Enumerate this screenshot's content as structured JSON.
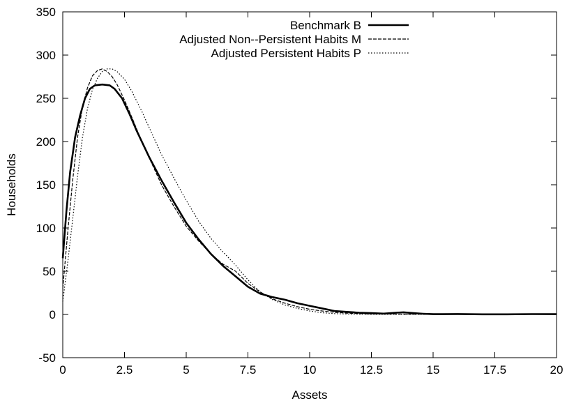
{
  "chart_data": {
    "type": "line",
    "title": "",
    "xlabel": "Assets",
    "ylabel": "Households",
    "xlim": [
      0,
      20
    ],
    "ylim": [
      -50,
      350
    ],
    "xticks": [
      0,
      2.5,
      5,
      7.5,
      10,
      12.5,
      15,
      17.5,
      20
    ],
    "yticks": [
      -50,
      0,
      50,
      100,
      150,
      200,
      250,
      300,
      350
    ],
    "xtick_labels": [
      "0",
      "2.5",
      "5",
      "7.5",
      "10",
      "12.5",
      "15",
      "17.5",
      "20"
    ],
    "ytick_labels": [
      "-50",
      "0",
      "50",
      "100",
      "150",
      "200",
      "250",
      "300",
      "350"
    ],
    "grid": false,
    "legend_position": "top-right",
    "series": [
      {
        "name": "Benchmark  B",
        "style": "solid",
        "color": "#000000",
        "x": [
          0,
          0.15,
          0.3,
          0.5,
          0.7,
          0.9,
          1.1,
          1.3,
          1.6,
          1.9,
          2.1,
          2.4,
          2.7,
          3.0,
          3.5,
          4.0,
          4.5,
          5.0,
          5.5,
          6.0,
          6.5,
          7.0,
          7.5,
          8.0,
          8.5,
          9.0,
          9.5,
          10.0,
          10.5,
          11.0,
          11.5,
          12.0,
          12.5,
          13.0,
          13.5,
          13.8,
          14.2,
          14.6,
          15.0,
          16.0,
          17.0,
          18.0,
          19.0,
          20.0
        ],
        "values": [
          65,
          120,
          165,
          205,
          230,
          250,
          261,
          265,
          266,
          265,
          261,
          250,
          232,
          212,
          182,
          155,
          130,
          106,
          87,
          70,
          56,
          44,
          32,
          24,
          20,
          17,
          13,
          10,
          7,
          4,
          3,
          2,
          1.5,
          1,
          2,
          2.5,
          1.5,
          0.8,
          0.3,
          0.5,
          0.2,
          0.2,
          0.4,
          0.3
        ]
      },
      {
        "name": "Adjusted Non--Persistent Habits  M",
        "style": "dashed",
        "color": "#000000",
        "x": [
          0,
          0.2,
          0.4,
          0.6,
          0.8,
          1.0,
          1.2,
          1.4,
          1.6,
          1.8,
          2.0,
          2.2,
          2.5,
          2.8,
          3.2,
          3.6,
          4.0,
          4.5,
          5.0,
          5.5,
          6.0,
          6.5,
          7.0,
          7.5,
          8.0,
          8.5,
          9.0,
          9.5,
          10.0,
          10.5,
          11.0,
          11.5,
          12.0,
          12.5,
          13.0,
          13.5,
          14.0,
          15.0,
          16.0,
          17.0,
          18.0,
          19.0,
          20.0
        ],
        "values": [
          30,
          95,
          155,
          205,
          240,
          262,
          276,
          282,
          284,
          281,
          275,
          266,
          248,
          228,
          200,
          175,
          150,
          125,
          102,
          85,
          70,
          58,
          50,
          36,
          26,
          18,
          13,
          9,
          6,
          4,
          2.5,
          1.5,
          1,
          0.5,
          0.5,
          0.5,
          0.3,
          0.2,
          0.2,
          0.1,
          0.1,
          0.1,
          0.1
        ]
      },
      {
        "name": "Adjusted Persistent Habits  P",
        "style": "dotted",
        "color": "#000000",
        "x": [
          0,
          0.2,
          0.4,
          0.6,
          0.8,
          1.0,
          1.2,
          1.4,
          1.6,
          1.8,
          2.0,
          2.2,
          2.5,
          2.8,
          3.2,
          3.6,
          4.0,
          4.5,
          5.0,
          5.5,
          6.0,
          6.5,
          7.0,
          7.5,
          8.0,
          8.5,
          9.0,
          9.5,
          10.0,
          10.5,
          11.0,
          11.5,
          12.0,
          12.5,
          13.0,
          13.5,
          14.0,
          15.0,
          16.0,
          17.0,
          18.0,
          19.0,
          20.0
        ],
        "values": [
          15,
          60,
          110,
          160,
          205,
          238,
          260,
          273,
          281,
          284,
          284,
          281,
          272,
          258,
          235,
          210,
          185,
          158,
          132,
          108,
          88,
          72,
          57,
          40,
          26,
          17,
          11,
          7,
          4,
          2,
          1,
          0.5,
          0.3,
          0.2,
          0.1,
          0.1,
          0.1,
          0.1,
          0.1,
          0.1,
          0.1,
          0.1,
          0.1
        ]
      }
    ]
  }
}
